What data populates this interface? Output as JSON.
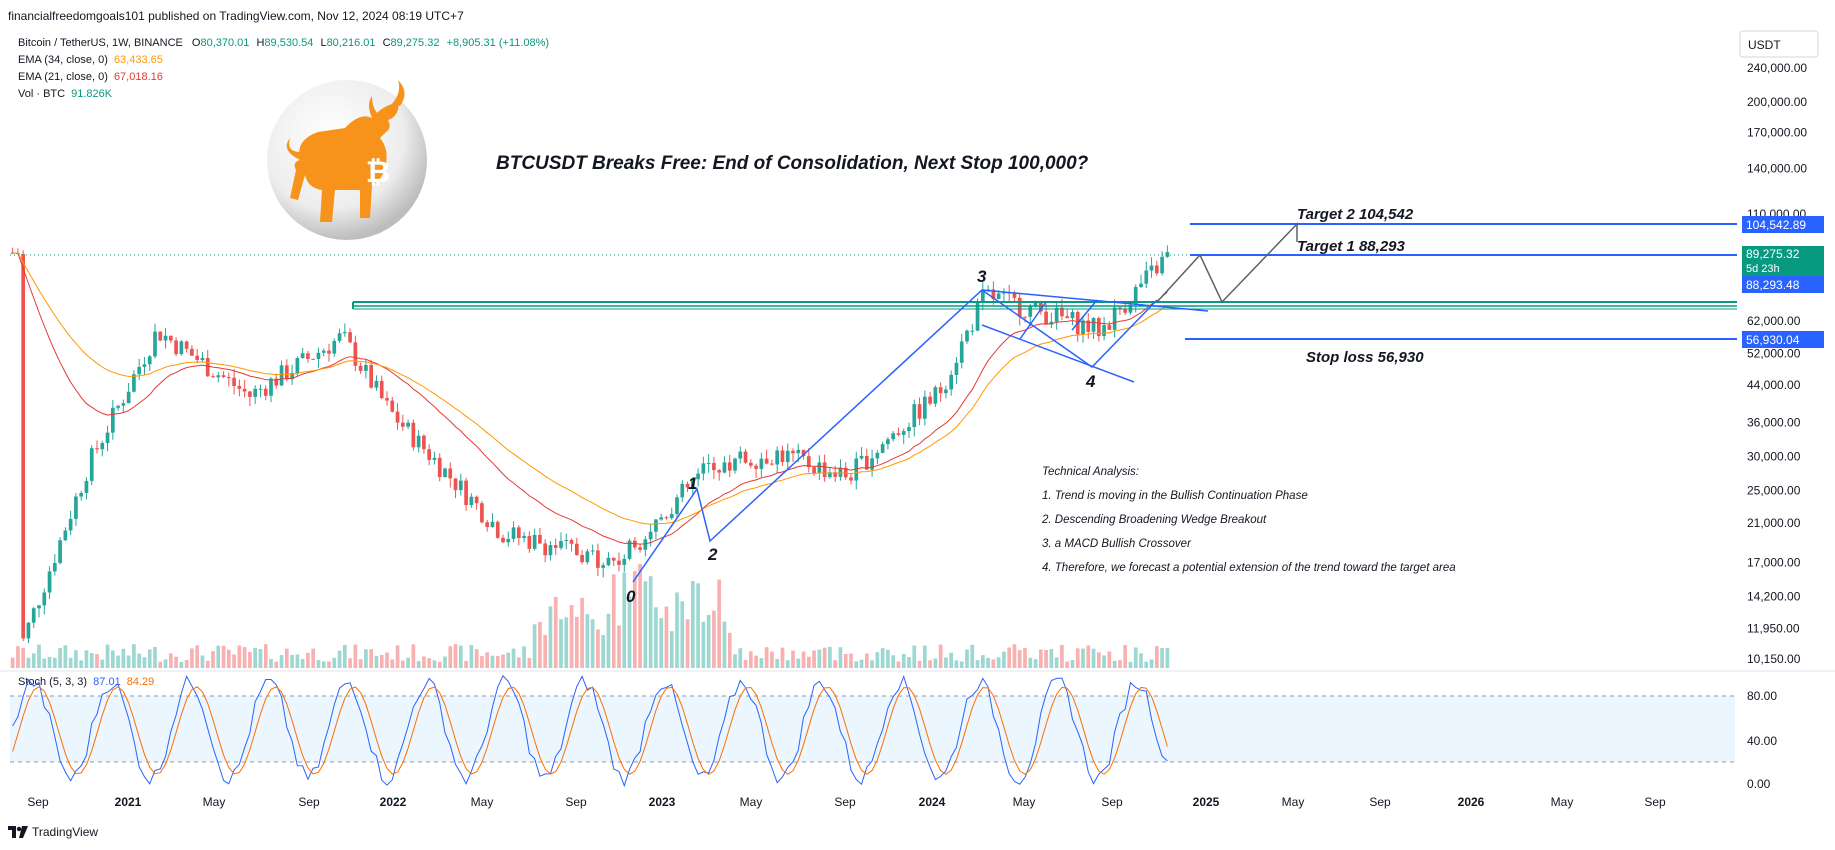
{
  "publisher": "financialfreedomgoals101 published on TradingView.com, Nov 12, 2024 08:19 UTC+7",
  "footer_brand": "TradingView",
  "legend": {
    "symbol": "Bitcoin / TetherUS, 1W, BINANCE",
    "open_label": "O",
    "open": "80,370.01",
    "high_label": "H",
    "high": "89,530.54",
    "low_label": "L",
    "low": "80,216.01",
    "close_label": "C",
    "close": "89,275.32",
    "change": "+8,905.31 (+11.08%)",
    "ema34_label": "EMA (34, close, 0)",
    "ema34_value": "63,433.65",
    "ema21_label": "EMA (21, close, 0)",
    "ema21_value": "67,018.16",
    "vol_label": "Vol · BTC",
    "vol_value": "91.826K"
  },
  "stoch_legend": {
    "label": "Stoch (5, 3, 3)",
    "k": "87.01",
    "d": "84.29"
  },
  "headline": "BTCUSDT Breaks Free: End of Consolidation, Next Stop 100,000?",
  "annotations": {
    "target2": "Target 2  104,542",
    "target1": "Target 1  88,293",
    "stoploss": "Stop loss 56,930",
    "wave_labels": [
      "0",
      "1",
      "2",
      "3",
      "4"
    ]
  },
  "analysis": {
    "title": "Technical Analysis:",
    "items": [
      "1. Trend is moving in the Bullish Continuation Phase",
      "2. Descending Broadening Wedge Breakout",
      "3. a MACD Bullish Crossover",
      "4. Therefore, we forecast a potential extension of the trend toward the target area"
    ]
  },
  "price_axis": {
    "currency": "USDT",
    "ticks": [
      "240,000.00",
      "200,000.00",
      "170,000.00",
      "140,000.00",
      "110,000.00",
      "62,000.00",
      "52,000.00",
      "44,000.00",
      "36,000.00",
      "30,000.00",
      "25,000.00",
      "21,000.00",
      "17,000.00",
      "14,200.00",
      "11,950.00",
      "10,150.00"
    ],
    "tags": {
      "target2": "104,542.89",
      "last_price": "89,275.32",
      "countdown": "5d 23h",
      "target1": "88,293.48",
      "stoploss": "56,930.04"
    }
  },
  "stoch_axis": {
    "ticks": [
      "80.00",
      "40.00",
      "0.00"
    ]
  },
  "time_axis": {
    "labels": [
      "Sep",
      "2021",
      "May",
      "Sep",
      "2022",
      "May",
      "Sep",
      "2023",
      "May",
      "Sep",
      "2024",
      "May",
      "Sep",
      "2025",
      "May",
      "Sep",
      "2026",
      "May",
      "Sep"
    ],
    "bold": [
      "2021",
      "2022",
      "2023",
      "2024",
      "2025",
      "2026"
    ]
  },
  "colors": {
    "up": "#26a69a",
    "down": "#ef5350",
    "ema21": "#e53935",
    "ema34": "#ff9800",
    "pattern": "#2962ff",
    "support": "#089981",
    "stoch_k": "#2962ff",
    "stoch_d": "#ff6d00",
    "logo": "#f7931a"
  },
  "chart_data": {
    "type": "candlestick",
    "title": "BTCUSDT Breaks Free: End of Consolidation, Next Stop 100,000?",
    "y_scale": "log",
    "ylim": [
      10150,
      240000
    ],
    "x_range": [
      "2020-09",
      "2026-10"
    ],
    "key_levels": {
      "target2": 104542.89,
      "target1": 88293.48,
      "last": 89275.32,
      "stoploss": 56930.04
    },
    "wave_points": [
      {
        "label": "0",
        "date": "2022-11",
        "price": 15500
      },
      {
        "label": "1",
        "date": "2023-03",
        "price": 25200
      },
      {
        "label": "2",
        "date": "2023-03",
        "price": 19600
      },
      {
        "label": "3",
        "date": "2024-03",
        "price": 69000
      },
      {
        "label": "4",
        "date": "2024-08",
        "price": 49000
      }
    ],
    "projection": [
      88293,
      104542
    ],
    "closes_monthly": [
      {
        "date": "2020-09",
        "close": 10800
      },
      {
        "date": "2020-12",
        "close": 29000
      },
      {
        "date": "2021-03",
        "close": 58800
      },
      {
        "date": "2021-07",
        "close": 41500
      },
      {
        "date": "2021-11",
        "close": 57000
      },
      {
        "date": "2022-01",
        "close": 38500
      },
      {
        "date": "2022-06",
        "close": 19900
      },
      {
        "date": "2022-11",
        "close": 17100
      },
      {
        "date": "2023-03",
        "close": 28500
      },
      {
        "date": "2023-06",
        "close": 30500
      },
      {
        "date": "2023-09",
        "close": 27000
      },
      {
        "date": "2024-01",
        "close": 42500
      },
      {
        "date": "2024-03",
        "close": 71300
      },
      {
        "date": "2024-08",
        "close": 59000
      },
      {
        "date": "2024-11",
        "close": 89275
      }
    ]
  }
}
